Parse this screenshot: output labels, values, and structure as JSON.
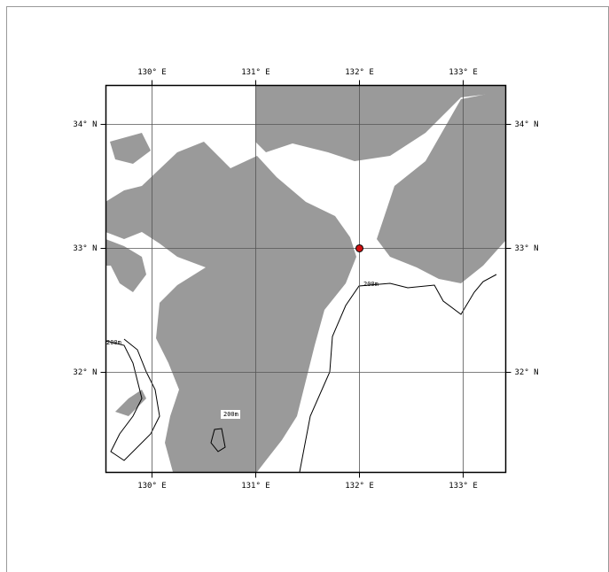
{
  "map": {
    "xlim": [
      129.556,
      133.41
    ],
    "ylim": [
      31.193,
      34.314
    ],
    "lon_ticks": [
      {
        "value": 130,
        "label": "130° E"
      },
      {
        "value": 131,
        "label": "131° E"
      },
      {
        "value": 132,
        "label": "132° E"
      },
      {
        "value": 133,
        "label": "133° E"
      }
    ],
    "lat_ticks": [
      {
        "value": 32,
        "label": "32° N"
      },
      {
        "value": 33,
        "label": "33° N"
      },
      {
        "value": 34,
        "label": "34° N"
      }
    ],
    "marker": {
      "lon": 132,
      "lat": 33,
      "color": "#d01010"
    },
    "contour_labels": [
      "200m",
      "200m",
      "200m"
    ]
  }
}
